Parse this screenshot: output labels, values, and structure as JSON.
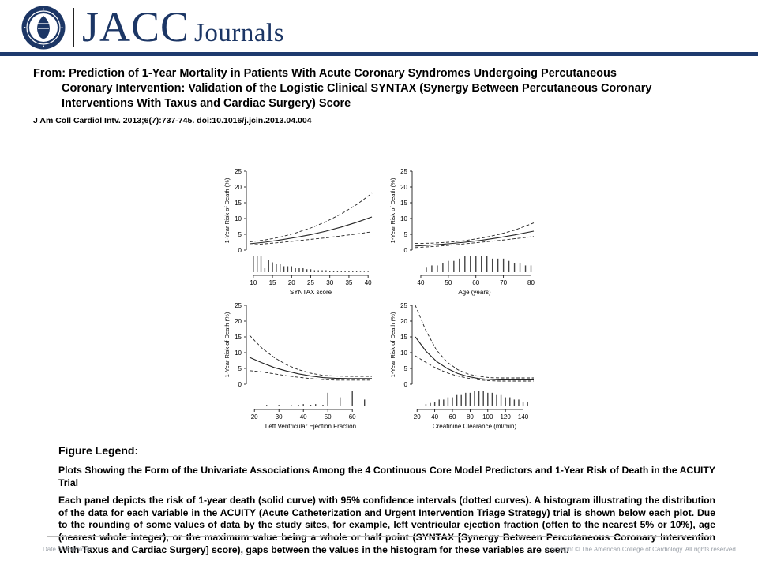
{
  "header": {
    "brand_main": "JACC",
    "brand_sub": "Journals",
    "colors": {
      "brand": "#1c3665",
      "rule": "#1e3a6e"
    },
    "seal_icon": "acc-seal-logo"
  },
  "article": {
    "from_line1": "From: Prediction of 1-Year Mortality in Patients With Acute Coronary Syndromes Undergoing Percutaneous",
    "from_line2": "Coronary Intervention: Validation of the Logistic Clinical SYNTAX (Synergy Between Percutaneous Coronary Interventions With Taxus and Cardiac Surgery) Score",
    "citation": "J Am Coll Cardiol Intv. 2013;6(7):737-745. doi:10.1016/j.jcin.2013.04.004"
  },
  "legend": {
    "heading": "Figure Legend:",
    "para1": "Plots Showing the Form of the Univariate Associations Among the 4 Continuous Core Model Predictors and 1-Year Risk of Death in the ACUITY Trial",
    "para2": "Each panel depicts the risk of 1-year death (solid curve) with 95% confidence intervals (dotted curves). A histogram illustrating the distribution of the data for each variable in the ACUITY (Acute Catheterization and Urgent Intervention Triage Strategy) trial is shown below each plot. Due to the rounding of some values of data by the study sites, for example, left ventricular ejection fraction (often to the nearest 5% or 10%), age (nearest whole integer), or the maximum value being a whole or half point (SYNTAX [Synergy Between Percutaneous Coronary Intervention With Taxus and Cardiac Surgery] score), gaps between the values in the histogram for these variables are seen."
  },
  "footer": {
    "left": "Date of download: ...",
    "right": "Copyright © The American College of Cardiology. All rights reserved."
  },
  "chart_data": [
    {
      "type": "line",
      "xlabel": "SYNTAX score",
      "ylabel": "1-Year Risk of Death (%)",
      "xlim": [
        9,
        41
      ],
      "ylim": [
        0,
        25
      ],
      "xticks": [
        10,
        15,
        20,
        25,
        30,
        35,
        40
      ],
      "yticks": [
        0,
        5,
        10,
        15,
        20,
        25
      ],
      "x": [
        9,
        13,
        17,
        21,
        25,
        29,
        33,
        37,
        41
      ],
      "series": [
        {
          "role": "estimate",
          "values": [
            2.0,
            2.5,
            3.2,
            4.0,
            4.9,
            6.0,
            7.3,
            8.8,
            10.5
          ]
        },
        {
          "role": "upper_ci",
          "values": [
            2.6,
            3.2,
            4.1,
            5.4,
            7.0,
            9.0,
            11.5,
            14.4,
            18.0
          ]
        },
        {
          "role": "lower_ci",
          "values": [
            1.6,
            2.0,
            2.4,
            2.9,
            3.4,
            3.9,
            4.5,
            5.1,
            5.8
          ]
        }
      ],
      "histogram": {
        "x": [
          10,
          11,
          12,
          13,
          14,
          15,
          16,
          17,
          18,
          19,
          20,
          21,
          22,
          23,
          24,
          25,
          26,
          27,
          28,
          29,
          30,
          31,
          32,
          33,
          34,
          35,
          36,
          37,
          38,
          39,
          40
        ],
        "values": [
          8,
          8,
          8,
          2,
          6,
          5,
          4,
          4,
          3,
          3,
          3,
          2,
          2,
          2,
          1.5,
          1.5,
          1,
          1,
          1,
          1,
          0.8,
          0.6,
          0.5,
          0.5,
          0.5,
          0.4,
          0.4,
          0.4,
          0.3,
          0.3,
          0.3
        ]
      }
    },
    {
      "type": "line",
      "xlabel": "Age (years)",
      "ylabel": "1-Year Risk of Death (%)",
      "xlim": [
        38,
        81
      ],
      "ylim": [
        0,
        25
      ],
      "xticks": [
        40,
        50,
        60,
        70,
        80
      ],
      "yticks": [
        0,
        5,
        10,
        15,
        20,
        25
      ],
      "x": [
        38,
        44,
        50,
        56,
        62,
        68,
        74,
        81
      ],
      "series": [
        {
          "role": "estimate",
          "values": [
            1.3,
            1.6,
            2.0,
            2.5,
            3.1,
            3.9,
            4.8,
            6.0
          ]
        },
        {
          "role": "upper_ci",
          "values": [
            2.1,
            2.2,
            2.5,
            3.0,
            3.8,
            4.9,
            6.3,
            8.6
          ]
        },
        {
          "role": "lower_ci",
          "values": [
            0.8,
            1.1,
            1.5,
            2.0,
            2.5,
            3.0,
            3.6,
            4.3
          ]
        }
      ],
      "histogram": {
        "x": [
          42,
          44,
          46,
          48,
          50,
          52,
          54,
          56,
          58,
          60,
          62,
          64,
          66,
          68,
          70,
          72,
          74,
          76,
          78,
          80
        ],
        "values": [
          2,
          3,
          3,
          4,
          5,
          5,
          6,
          7,
          7,
          7,
          7,
          7,
          6,
          6,
          6,
          5,
          4,
          4,
          3,
          3
        ]
      }
    },
    {
      "type": "line",
      "xlabel": "Left Ventricular Ejection Fraction",
      "ylabel": "1-Year Risk of Death (%)",
      "xlim": [
        18,
        68
      ],
      "ylim": [
        0,
        25
      ],
      "xticks": [
        20,
        30,
        40,
        50,
        60
      ],
      "yticks": [
        0,
        5,
        10,
        15,
        20,
        25
      ],
      "x": [
        18,
        23,
        28,
        33,
        38,
        43,
        48,
        53,
        58,
        63,
        68
      ],
      "series": [
        {
          "role": "estimate",
          "values": [
            8.5,
            6.8,
            5.3,
            4.2,
            3.3,
            2.6,
            2.1,
            1.9,
            1.8,
            1.8,
            1.8
          ]
        },
        {
          "role": "upper_ci",
          "values": [
            15.5,
            11.5,
            8.5,
            6.2,
            4.6,
            3.5,
            2.8,
            2.6,
            2.5,
            2.5,
            2.5
          ]
        },
        {
          "role": "lower_ci",
          "values": [
            4.3,
            3.9,
            3.3,
            2.7,
            2.2,
            1.8,
            1.5,
            1.3,
            1.3,
            1.3,
            1.3
          ]
        }
      ],
      "histogram": {
        "x": [
          25,
          30,
          35,
          38,
          40,
          43,
          45,
          48,
          50,
          55,
          60,
          65
        ],
        "values": [
          0.3,
          0.3,
          0.5,
          0.5,
          1,
          0.5,
          1,
          0.5,
          6,
          4,
          7,
          3
        ]
      }
    },
    {
      "type": "line",
      "xlabel": "Creatinine Clearance (ml/min)",
      "ylabel": "1-Year Risk of Death (%)",
      "xlim": [
        18,
        152
      ],
      "ylim": [
        0,
        25
      ],
      "xticks": [
        20,
        40,
        60,
        80,
        100,
        120,
        140
      ],
      "yticks": [
        0,
        5,
        10,
        15,
        20,
        25
      ],
      "x": [
        18,
        30,
        42,
        54,
        66,
        78,
        90,
        102,
        114,
        126,
        138,
        152
      ],
      "series": [
        {
          "role": "estimate",
          "values": [
            15.0,
            10.5,
            7.2,
            5.0,
            3.4,
            2.4,
            1.8,
            1.5,
            1.4,
            1.4,
            1.4,
            1.4
          ]
        },
        {
          "role": "upper_ci",
          "values": [
            25.0,
            17.0,
            10.8,
            7.0,
            4.6,
            3.2,
            2.5,
            2.1,
            2.0,
            2.0,
            2.0,
            2.0
          ]
        },
        {
          "role": "lower_ci",
          "values": [
            9.0,
            6.9,
            5.0,
            3.6,
            2.6,
            1.9,
            1.4,
            1.1,
            1.0,
            1.0,
            1.0,
            1.0
          ]
        }
      ],
      "histogram": {
        "x": [
          30,
          35,
          40,
          45,
          50,
          55,
          60,
          65,
          70,
          75,
          80,
          85,
          90,
          95,
          100,
          105,
          110,
          115,
          120,
          125,
          130,
          135,
          140,
          145
        ],
        "values": [
          1,
          1.5,
          2,
          3,
          3,
          4,
          4,
          5,
          5,
          6,
          6,
          7,
          7,
          7,
          6,
          6,
          5,
          5,
          4,
          4,
          3,
          3,
          2,
          2
        ]
      }
    }
  ]
}
